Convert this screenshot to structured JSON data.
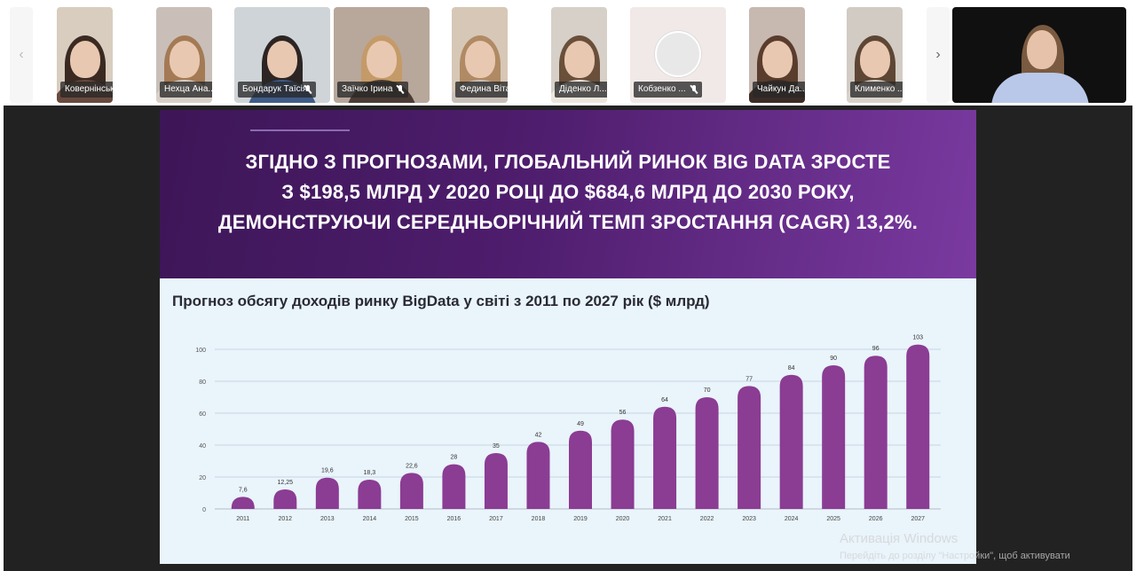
{
  "participants": [
    {
      "name": "Ковернінська ...",
      "bg": "#d9cdbf",
      "hair": "#3b2a22",
      "body": "#6a4a3e"
    },
    {
      "name": "Нехца Ана...",
      "bg": "#c9bfb8",
      "hair": "#a47a55",
      "body": "#d8d0c8"
    },
    {
      "name": "Бондарук Таїсія",
      "bg": "#cfd4d8",
      "hair": "#2c2523",
      "body": "#3f5c88"
    },
    {
      "name": "Заїчко Ірина",
      "bg": "#b8a79b",
      "hair": "#c49a68",
      "body": "#4b3b35"
    },
    {
      "name": "Федина Віта",
      "bg": "#d7c7b6",
      "hair": "#b08a64",
      "body": "#c8c0b8"
    },
    {
      "name": "Діденко Л...",
      "bg": "#d6d0c8",
      "hair": "#6a4f3a",
      "body": "#ece6dd"
    },
    {
      "name": "Кобзенко ...",
      "bg": "#f1e9e7",
      "avatar": true
    },
    {
      "name": "Чайкун Да...",
      "bg": "#c7b8b0",
      "hair": "#5a3d2c",
      "body": "#3b2b26"
    },
    {
      "name": "Клименко ...",
      "bg": "#d2cbc4",
      "hair": "#5e4634",
      "body": "#d8d2ca"
    }
  ],
  "speaker": {
    "bg": "#0e0e0e",
    "hair": "#7a5a40",
    "body": "#b9c8e8"
  },
  "slide": {
    "headline": [
      "ЗГІДНО З ПРОГНОЗАМИ, ГЛОБАЛЬНИЙ РИНОК BIG DATA ЗРОСТЕ",
      "З $198,5 МЛРД У 2020 РОЦІ ДО $684,6 МЛРД ДО 2030 РОКУ,",
      "ДЕМОНСТРУЮЧИ СЕРЕДНЬОРІЧНИЙ ТЕМП ЗРОСТАННЯ (CAGR) 13,2%."
    ],
    "chart_title": "Прогноз обсягу доходів ринку BigData у світі з 2011 по 2027 рік ($ млрд)"
  },
  "chart_data": {
    "type": "bar",
    "categories": [
      "2011",
      "2012",
      "2013",
      "2014",
      "2015",
      "2016",
      "2017",
      "2018",
      "2019",
      "2020",
      "2021",
      "2022",
      "2023",
      "2024",
      "2025",
      "2026",
      "2027"
    ],
    "values": [
      7.6,
      12.25,
      19.6,
      18.3,
      22.6,
      28,
      35,
      42,
      49,
      56,
      64,
      70,
      77,
      84,
      90,
      96,
      103
    ],
    "value_labels": [
      "7,6",
      "12,25",
      "19,6",
      "18,3",
      "22,6",
      "28",
      "35",
      "42",
      "49",
      "56",
      "64",
      "70",
      "77",
      "84",
      "90",
      "96",
      "103"
    ],
    "yticks": [
      "0",
      "20",
      "40",
      "60",
      "80",
      "100"
    ],
    "ylim": [
      0,
      105
    ],
    "grid": true,
    "bar_color": "#8b3c93"
  },
  "watermark": {
    "title": "Активація Windows",
    "subtitle": "Перейдіть до розділу \"Настройки\", щоб активувати"
  },
  "icons": {
    "prev": "‹",
    "next": "›"
  }
}
